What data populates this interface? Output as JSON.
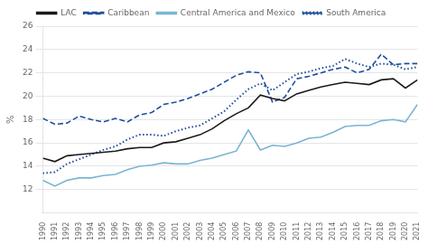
{
  "chart_data": {
    "type": "line",
    "ylabel": "%",
    "x": [
      1990,
      1991,
      1992,
      1993,
      1994,
      1995,
      1996,
      1997,
      1998,
      1999,
      2000,
      2001,
      2002,
      2003,
      2004,
      2005,
      2006,
      2007,
      2008,
      2009,
      2010,
      2011,
      2012,
      2013,
      2014,
      2015,
      2016,
      2017,
      2018,
      2019,
      2020,
      2021
    ],
    "series": [
      {
        "name": "LAC",
        "color": "#1a1a1a",
        "line_style": "solid",
        "values": [
          14.7,
          14.4,
          14.9,
          15.0,
          15.1,
          15.2,
          15.3,
          15.5,
          15.6,
          15.6,
          16.0,
          16.1,
          16.4,
          16.7,
          17.2,
          17.9,
          18.5,
          19.0,
          20.1,
          19.8,
          19.6,
          20.2,
          20.5,
          20.8,
          21.0,
          21.2,
          21.1,
          21.0,
          21.4,
          21.5,
          20.7,
          21.4
        ]
      },
      {
        "name": "Caribbean",
        "color": "#1f4e9c",
        "line_style": "dashed",
        "values": [
          18.1,
          17.6,
          17.7,
          18.3,
          18.0,
          17.8,
          18.1,
          17.8,
          18.4,
          18.6,
          19.3,
          19.5,
          19.8,
          20.2,
          20.6,
          21.2,
          21.8,
          22.1,
          22.0,
          19.5,
          19.9,
          21.5,
          21.7,
          22.0,
          22.3,
          22.5,
          22.0,
          22.3,
          23.6,
          22.7,
          22.8,
          22.8
        ]
      },
      {
        "name": "Central America and Mexico",
        "color": "#7ab4d4",
        "line_style": "solid",
        "values": [
          12.8,
          12.3,
          12.8,
          13.0,
          13.0,
          13.2,
          13.3,
          13.7,
          14.0,
          14.1,
          14.3,
          14.2,
          14.2,
          14.5,
          14.7,
          15.0,
          15.3,
          17.1,
          15.4,
          15.8,
          15.7,
          16.0,
          16.4,
          16.5,
          16.9,
          17.4,
          17.5,
          17.5,
          17.9,
          18.0,
          17.8,
          19.3
        ]
      },
      {
        "name": "South America",
        "color": "#1f4e9c",
        "line_style": "dotted",
        "values": [
          13.4,
          13.5,
          14.2,
          14.6,
          15.0,
          15.4,
          15.7,
          16.3,
          16.7,
          16.7,
          16.6,
          17.0,
          17.3,
          17.5,
          18.1,
          18.7,
          19.7,
          20.6,
          21.1,
          20.5,
          21.2,
          21.9,
          22.1,
          22.4,
          22.6,
          23.2,
          22.8,
          22.5,
          22.8,
          22.7,
          22.3,
          22.5
        ]
      }
    ],
    "xlim": [
      1990,
      2021
    ],
    "xticks": [
      1990,
      1991,
      1992,
      1993,
      1994,
      1995,
      1996,
      1997,
      1998,
      1999,
      2000,
      2001,
      2002,
      2003,
      2004,
      2005,
      2006,
      2007,
      2008,
      2009,
      2010,
      2011,
      2012,
      2013,
      2014,
      2015,
      2016,
      2017,
      2018,
      2019,
      2020,
      2021
    ],
    "ylim": [
      10,
      26
    ],
    "yticks": [
      12,
      14,
      16,
      18,
      20,
      22,
      24,
      26
    ],
    "grid": true,
    "legend": "top"
  }
}
